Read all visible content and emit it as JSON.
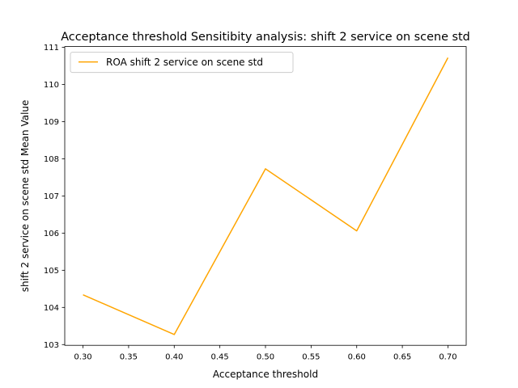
{
  "chart_data": {
    "type": "line",
    "title": "Acceptance threshold Sensitibity analysis: shift 2 service on scene std",
    "xlabel": "Acceptance threshold",
    "ylabel": "shift 2 service on scene std Mean Value",
    "x": [
      0.3,
      0.4,
      0.5,
      0.6,
      0.7
    ],
    "xticks": [
      "0.30",
      "0.35",
      "0.40",
      "0.45",
      "0.50",
      "0.55",
      "0.60",
      "0.65",
      "0.70"
    ],
    "yticks": [
      "103",
      "104",
      "105",
      "106",
      "107",
      "108",
      "109",
      "110",
      "111"
    ],
    "xlim": [
      0.28,
      0.72
    ],
    "ylim": [
      102.98,
      111.02
    ],
    "grid": false,
    "legend_position": "upper-left",
    "series": [
      {
        "name": "ROA shift 2 service on scene std",
        "color": "#ffa500",
        "values": [
          104.34,
          103.27,
          107.73,
          106.06,
          110.72
        ]
      }
    ]
  }
}
